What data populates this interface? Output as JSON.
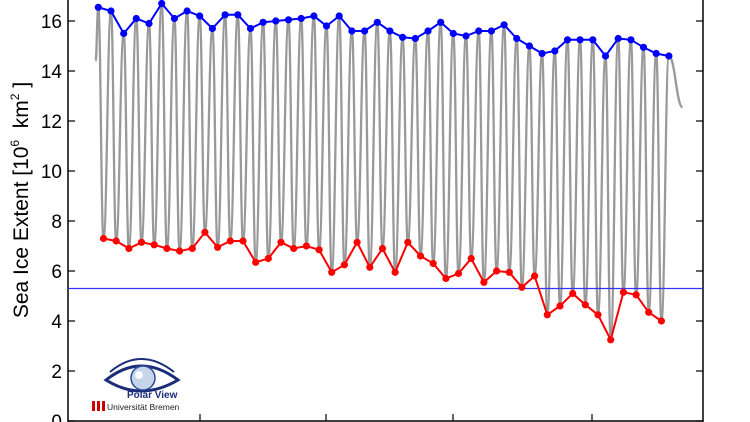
{
  "chart_data": {
    "type": "line",
    "title": "",
    "ylabel": {
      "main": "Sea Ice Extent [10",
      "exp1": "6",
      "unit": "km",
      "exp2": "2",
      "close": "]"
    },
    "xlabel": "",
    "ylim": [
      0,
      17.6
    ],
    "yticks": [
      0,
      2,
      4,
      6,
      8,
      10,
      12,
      14,
      16
    ],
    "grid": false,
    "x_start_year": 1979,
    "series": [
      {
        "role": "annual-maximum",
        "color": "#0000ff",
        "values": [
          16.55,
          16.4,
          15.5,
          16.1,
          15.9,
          16.7,
          16.1,
          16.4,
          16.2,
          15.7,
          16.25,
          16.25,
          15.7,
          15.95,
          16.0,
          16.05,
          16.1,
          16.2,
          15.8,
          16.2,
          15.6,
          15.6,
          15.95,
          15.6,
          15.35,
          15.3,
          15.6,
          15.95,
          15.5,
          15.4,
          15.6,
          15.6,
          15.85,
          15.3,
          15.0,
          14.7,
          14.8,
          15.25,
          15.25,
          15.25,
          14.6,
          15.3,
          15.25,
          14.95,
          14.7,
          14.6
        ]
      },
      {
        "role": "annual-minimum",
        "color": "#ff0000",
        "values": [
          7.3,
          7.2,
          6.9,
          7.15,
          7.05,
          6.9,
          6.8,
          6.9,
          7.55,
          6.95,
          7.2,
          7.2,
          6.35,
          6.5,
          7.15,
          6.9,
          7.0,
          6.85,
          5.95,
          6.25,
          7.15,
          6.15,
          6.9,
          5.95,
          7.15,
          6.6,
          6.3,
          5.7,
          5.9,
          6.5,
          5.55,
          6.0,
          5.95,
          5.35,
          5.8,
          4.25,
          4.6,
          5.1,
          4.65,
          4.25,
          3.25,
          5.15,
          5.05,
          4.35,
          4.0
        ]
      }
    ],
    "monthly_cycle": {
      "color": "#999999",
      "final_value": 12.55,
      "start_value": 14.4
    },
    "reference_line": {
      "value": 5.3,
      "color": "#3333ff"
    }
  },
  "logo": {
    "name": "Polar View",
    "institution": "Universität Bremen"
  }
}
